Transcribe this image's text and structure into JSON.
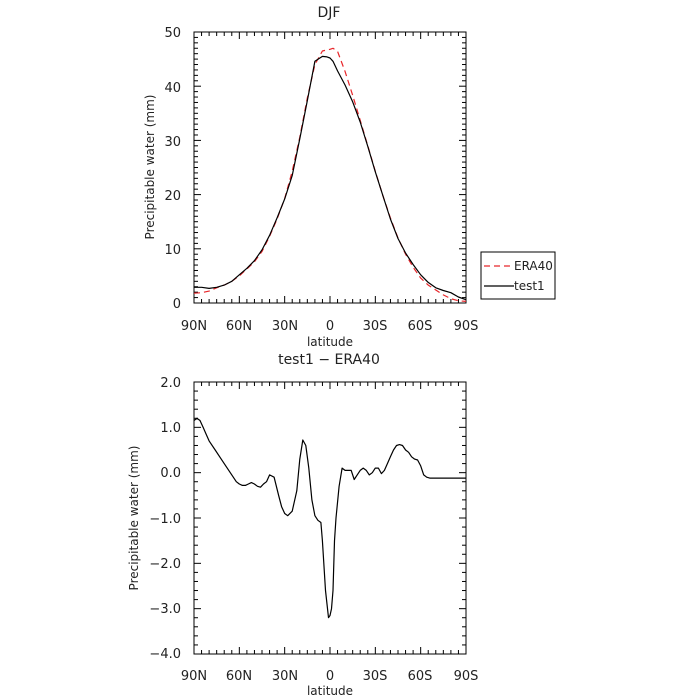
{
  "chart_data": [
    {
      "type": "line",
      "title": "DJF",
      "xlabel": "latitude",
      "ylabel": "Precipitable water (mm)",
      "x_ticks": [
        "90N",
        "60N",
        "30N",
        "0",
        "30S",
        "60S",
        "90S"
      ],
      "ylim": [
        0,
        50
      ],
      "y_ticks": [
        "0",
        "10",
        "20",
        "30",
        "40",
        "50"
      ],
      "legend": {
        "placement": "right"
      },
      "x": [
        90,
        85,
        80,
        75,
        70,
        65,
        60,
        55,
        50,
        45,
        40,
        35,
        30,
        25,
        20,
        15,
        10,
        5,
        2,
        0,
        -2,
        -5,
        -10,
        -15,
        -20,
        -25,
        -30,
        -35,
        -40,
        -45,
        -50,
        -55,
        -60,
        -65,
        -70,
        -75,
        -80,
        -85,
        -90
      ],
      "series": [
        {
          "name": "ERA40",
          "color": "#e8262a",
          "dash": "6,4",
          "values": [
            1.8,
            1.9,
            2.2,
            2.8,
            3.3,
            4.0,
            5.0,
            6.3,
            7.6,
            9.5,
            12.3,
            15.5,
            19.3,
            24.3,
            30.6,
            37.8,
            44.0,
            46.5,
            46.7,
            46.8,
            47.0,
            46.4,
            42.7,
            38.3,
            33.7,
            29.0,
            24.3,
            19.8,
            15.7,
            12.0,
            9.0,
            6.6,
            4.6,
            3.3,
            2.4,
            1.5,
            0.8,
            0.4,
            0.3
          ]
        },
        {
          "name": "test1",
          "color": "#000000",
          "dash": "",
          "values": [
            2.9,
            2.9,
            2.7,
            2.9,
            3.3,
            4.0,
            5.2,
            6.4,
            7.8,
            9.8,
            12.5,
            15.7,
            19.2,
            23.5,
            30.3,
            37.3,
            44.6,
            45.5,
            45.4,
            45.2,
            44.6,
            42.8,
            40.2,
            37.1,
            33.4,
            28.9,
            24.2,
            19.8,
            15.5,
            11.9,
            9.2,
            7.1,
            5.2,
            3.8,
            2.8,
            2.3,
            1.9,
            1.1,
            0.6
          ]
        }
      ]
    },
    {
      "type": "line",
      "title": "test1 − ERA40",
      "xlabel": "latitude",
      "ylabel": "Precipitable water (mm)",
      "x_ticks": [
        "90N",
        "60N",
        "30N",
        "0",
        "30S",
        "60S",
        "90S"
      ],
      "ylim": [
        -4,
        2
      ],
      "y_ticks": [
        "2.0",
        "1.0",
        "0.0",
        "−1.0",
        "−2.0",
        "−3.0",
        "−4.0"
      ],
      "x": [
        90,
        88,
        86,
        84,
        82,
        80,
        76,
        72,
        68,
        65,
        62,
        60,
        58,
        56,
        54,
        52,
        50,
        48,
        46,
        44,
        42,
        40,
        37,
        34,
        32,
        30,
        28,
        25,
        22,
        20,
        18,
        16,
        14,
        12,
        10,
        8,
        6,
        5,
        3,
        1,
        0,
        -1,
        -2,
        -3,
        -4,
        -6,
        -8,
        -10,
        -12,
        -14,
        -16,
        -18,
        -20,
        -22,
        -24,
        -26,
        -28,
        -30,
        -32,
        -34,
        -36,
        -38,
        -40,
        -42,
        -44,
        -46,
        -48,
        -50,
        -52,
        -54,
        -56,
        -58,
        -60,
        -62,
        -64,
        -66,
        -68,
        -70,
        -72,
        -74,
        -76,
        -78,
        -80,
        -82,
        -84,
        -86,
        -88,
        -90
      ],
      "series": [
        {
          "name": "",
          "color": "#000000",
          "dash": "",
          "values": [
            1.15,
            1.2,
            1.15,
            1.0,
            0.85,
            0.7,
            0.5,
            0.3,
            0.1,
            -0.05,
            -0.2,
            -0.25,
            -0.28,
            -0.28,
            -0.25,
            -0.22,
            -0.25,
            -0.3,
            -0.32,
            -0.25,
            -0.2,
            -0.05,
            -0.1,
            -0.5,
            -0.75,
            -0.9,
            -0.95,
            -0.85,
            -0.4,
            0.3,
            0.72,
            0.6,
            0.1,
            -0.6,
            -0.95,
            -1.05,
            -1.1,
            -1.5,
            -2.6,
            -3.2,
            -3.15,
            -3.0,
            -2.6,
            -1.5,
            -1.0,
            -0.3,
            0.1,
            0.05,
            0.05,
            0.05,
            -0.15,
            -0.05,
            0.05,
            0.1,
            0.05,
            -0.05,
            0.0,
            0.1,
            0.1,
            -0.02,
            0.05,
            0.2,
            0.35,
            0.5,
            0.6,
            0.62,
            0.6,
            0.5,
            0.45,
            0.35,
            0.3,
            0.28,
            0.15,
            -0.05,
            -0.1,
            -0.12,
            -0.12,
            -0.12,
            -0.12,
            -0.12,
            -0.12,
            -0.12,
            -0.12,
            -0.12,
            -0.12,
            -0.12,
            -0.12,
            -0.12
          ]
        }
      ]
    }
  ]
}
